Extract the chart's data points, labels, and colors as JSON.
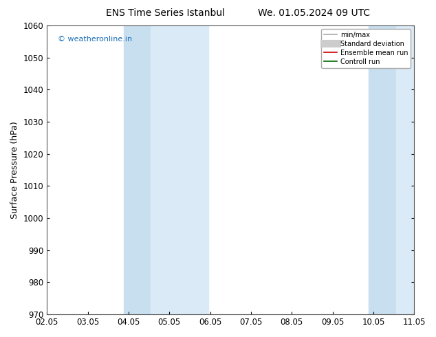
{
  "title_left": "ENS Time Series Istanbul",
  "title_right": "We. 01.05.2024 09 UTC",
  "ylabel": "Surface Pressure (hPa)",
  "ylim": [
    970,
    1060
  ],
  "yticks": [
    970,
    980,
    990,
    1000,
    1010,
    1020,
    1030,
    1040,
    1050,
    1060
  ],
  "xlim": [
    0,
    9
  ],
  "xtick_positions": [
    0,
    1,
    2,
    3,
    4,
    5,
    6,
    7,
    8,
    9
  ],
  "xtick_labels": [
    "02.05",
    "03.05",
    "04.05",
    "05.05",
    "06.05",
    "07.05",
    "08.05",
    "09.05",
    "10.05",
    "11.05"
  ],
  "shaded_bands": [
    {
      "xmin": 1.88,
      "xmax": 2.55,
      "color": "#c8dff0",
      "alpha": 1.0
    },
    {
      "xmin": 2.55,
      "xmax": 3.95,
      "color": "#daeaf7",
      "alpha": 1.0
    },
    {
      "xmin": 7.88,
      "xmax": 8.55,
      "color": "#c8dff0",
      "alpha": 1.0
    },
    {
      "xmin": 8.55,
      "xmax": 9.5,
      "color": "#daeaf7",
      "alpha": 1.0
    }
  ],
  "vline_x": 4.0,
  "vline_color": "#bbbbbb",
  "shade_color": "#cce4f5",
  "watermark": "© weatheronline.in",
  "watermark_color": "#1a6eb5",
  "legend_entries": [
    {
      "label": "min/max",
      "color": "#aaaaaa",
      "lw": 1.2,
      "style": "-",
      "type": "line"
    },
    {
      "label": "Standard deviation",
      "color": "#cccccc",
      "lw": 8,
      "style": "-",
      "type": "line"
    },
    {
      "label": "Ensemble mean run",
      "color": "#cc0000",
      "lw": 1.2,
      "style": "-",
      "type": "line"
    },
    {
      "label": "Controll run",
      "color": "#006600",
      "lw": 1.2,
      "style": "-",
      "type": "line"
    }
  ],
  "bg_color": "#ffffff",
  "plot_bg_color": "#ffffff",
  "title_fontsize": 10,
  "axis_label_fontsize": 9,
  "tick_fontsize": 8.5
}
